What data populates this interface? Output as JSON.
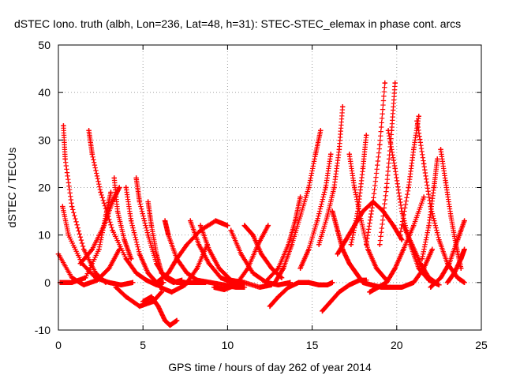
{
  "chart_data": {
    "type": "scatter",
    "title": "dSTEC Iono. truth (albh, Lon=236, Lat=48, h=31): STEC-STEC_elemax in phase cont. arcs",
    "xlabel": "GPS time / hours of day 262 of year 2014",
    "ylabel": "dSTEC  / TECUs",
    "xlim": [
      0,
      25
    ],
    "ylim": [
      -10,
      50
    ],
    "x_ticks": [
      0,
      5,
      10,
      15,
      20,
      25
    ],
    "y_ticks": [
      -10,
      0,
      10,
      20,
      30,
      40,
      50
    ],
    "x_tick_labels": [
      "0",
      "5",
      "10",
      "15",
      "20",
      "25"
    ],
    "y_tick_labels": [
      "-10",
      "0",
      "10",
      "20",
      "30",
      "40",
      "50"
    ],
    "grid": true,
    "marker": "+",
    "color": "#ff0000",
    "series": [
      {
        "x": [
          0.0,
          0.8,
          1.5,
          2.3,
          3.0,
          3.6
        ],
        "y": [
          6,
          1,
          -0.5,
          0.5,
          3,
          7
        ]
      },
      {
        "x": [
          0.3,
          0.4,
          0.8,
          1.5,
          2.2,
          2.8
        ],
        "y": [
          33,
          26,
          16,
          7,
          2,
          0
        ]
      },
      {
        "x": [
          0.25,
          0.6,
          1.4,
          2.2,
          3.0,
          3.7,
          4.4
        ],
        "y": [
          16,
          10,
          4,
          1,
          0,
          -0.5,
          0
        ]
      },
      {
        "x": [
          0.1,
          0.8,
          1.6,
          2.4,
          2.8,
          3.1
        ],
        "y": [
          0,
          0,
          1,
          7,
          14,
          19
        ]
      },
      {
        "x": [
          1.8,
          2.0,
          2.5,
          3.2,
          4.0,
          4.6,
          5.2,
          5.8,
          6.2
        ],
        "y": [
          32,
          27,
          19,
          11,
          5,
          2,
          0.5,
          -0.5,
          0
        ]
      },
      {
        "x": [
          1.3,
          2.0,
          2.7,
          3.2,
          3.6
        ],
        "y": [
          4,
          7,
          12,
          17,
          20
        ]
      },
      {
        "x": [
          3.3,
          3.5,
          3.9,
          4.3
        ],
        "y": [
          22,
          15,
          9,
          5
        ]
      },
      {
        "x": [
          3.4,
          4.0,
          4.8,
          5.6,
          6.1
        ],
        "y": [
          -1,
          -3,
          -5,
          -4,
          -2
        ]
      },
      {
        "x": [
          4.0,
          4.3,
          4.8,
          5.3,
          5.8,
          6.1
        ],
        "y": [
          20,
          13,
          6,
          2,
          0,
          -1
        ]
      },
      {
        "x": [
          4.6,
          4.8,
          5.3,
          5.8,
          6.3,
          6.8,
          7.3
        ],
        "y": [
          22,
          17,
          10,
          4,
          1,
          0,
          0.5
        ]
      },
      {
        "x": [
          5.0,
          5.5,
          5.9,
          6.3,
          6.6,
          7.0
        ],
        "y": [
          -4,
          -3,
          -5,
          -8,
          -9,
          -8
        ]
      },
      {
        "x": [
          5.3,
          5.5,
          5.8,
          6.1,
          6.5,
          7.0,
          7.6,
          8.2,
          8.7
        ],
        "y": [
          17,
          12,
          6,
          2,
          1,
          0,
          0,
          0,
          0
        ]
      },
      {
        "x": [
          6.3,
          6.5,
          7.0,
          7.6,
          8.2,
          9.0,
          9.8,
          10.5,
          11.0
        ],
        "y": [
          13,
          10,
          5,
          2,
          0.5,
          0,
          -0.5,
          -1,
          -1
        ]
      },
      {
        "x": [
          6.0,
          6.7,
          7.5,
          8.2,
          8.8
        ],
        "y": [
          -1,
          -2,
          -0.5,
          3,
          8
        ]
      },
      {
        "x": [
          5.8,
          6.5,
          7.0,
          7.6,
          8.4,
          9.3,
          10.0
        ],
        "y": [
          0,
          2,
          5,
          8,
          11,
          13,
          12
        ]
      },
      {
        "x": [
          7.8,
          8.3,
          8.9,
          9.6,
          10.3,
          11.0
        ],
        "y": [
          13,
          8,
          4,
          1,
          0,
          0
        ]
      },
      {
        "x": [
          8.4,
          8.9,
          9.5,
          10.2,
          11.0,
          11.9,
          12.6
        ],
        "y": [
          12,
          7,
          3,
          0.5,
          0,
          -1,
          -0.5
        ]
      },
      {
        "x": [
          9.2,
          9.8,
          10.5,
          11.2,
          11.8,
          12.4
        ],
        "y": [
          -1,
          -1.5,
          -0.5,
          3,
          8,
          12
        ]
      },
      {
        "x": [
          10.2,
          10.8,
          11.5,
          12.3,
          13.0,
          13.7
        ],
        "y": [
          11,
          6,
          2,
          0,
          -0.5,
          0
        ]
      },
      {
        "x": [
          11.0,
          11.5,
          12.0,
          12.6,
          13.2
        ],
        "y": [
          12,
          10,
          6,
          3,
          1
        ]
      },
      {
        "x": [
          12.5,
          13.0,
          13.6,
          14.2,
          14.8,
          15.4,
          15.9,
          16.2
        ],
        "y": [
          -5,
          -3,
          -1,
          0,
          0,
          -0.5,
          -0.5,
          0
        ]
      },
      {
        "x": [
          12.8,
          13.3,
          13.8,
          14.3,
          14.8,
          15.2,
          15.5
        ],
        "y": [
          0,
          3,
          8,
          14,
          20,
          27,
          32
        ]
      },
      {
        "x": [
          12.2,
          13.0,
          13.6,
          14.0,
          14.3
        ],
        "y": [
          0,
          3,
          8,
          13,
          18
        ]
      },
      {
        "x": [
          15.6,
          16.1,
          16.6,
          17.2,
          17.8,
          18.2
        ],
        "y": [
          -6,
          -4,
          -2,
          -0.5,
          0.5,
          0.5
        ]
      },
      {
        "x": [
          14.3,
          14.8,
          15.3,
          15.8,
          16.1
        ],
        "y": [
          3,
          7,
          13,
          20,
          27
        ]
      },
      {
        "x": [
          16.2,
          16.5,
          16.8,
          17.2,
          17.6,
          18.0,
          18.5,
          19.1,
          19.6
        ],
        "y": [
          15,
          11,
          7,
          4,
          2,
          0,
          -0.5,
          -1,
          -1
        ]
      },
      {
        "x": [
          15.4,
          15.9,
          16.3,
          16.6,
          16.8
        ],
        "y": [
          8,
          14,
          20,
          28,
          37
        ]
      },
      {
        "x": [
          16.5,
          17.0,
          17.5,
          18.0,
          18.6,
          19.2,
          19.8,
          20.3
        ],
        "y": [
          6,
          9,
          12,
          15,
          17,
          15,
          12,
          9
        ]
      },
      {
        "x": [
          17.2,
          17.5,
          17.9,
          18.3,
          18.8,
          19.4
        ],
        "y": [
          27,
          20,
          13,
          7,
          3,
          0.5
        ]
      },
      {
        "x": [
          17.3,
          17.7,
          18.0,
          18.2
        ],
        "y": [
          8,
          15,
          24,
          31
        ]
      },
      {
        "x": [
          18.2,
          18.6,
          19.0,
          19.3
        ],
        "y": [
          8,
          17,
          29,
          42
        ]
      },
      {
        "x": [
          18.4,
          18.9,
          19.4,
          19.9,
          20.4,
          21.0,
          21.6
        ],
        "y": [
          -2,
          -1,
          0,
          3,
          7,
          12,
          18
        ]
      },
      {
        "x": [
          19.5,
          19.9,
          20.3,
          20.8,
          21.3,
          21.9,
          22.5
        ],
        "y": [
          32,
          24,
          15,
          8,
          3,
          0.5,
          -0.5
        ]
      },
      {
        "x": [
          19.0,
          19.4,
          19.7,
          19.9
        ],
        "y": [
          8,
          20,
          32,
          42
        ]
      },
      {
        "x": [
          19.6,
          20.3,
          21.0,
          21.6,
          22.1
        ],
        "y": [
          -1,
          -1,
          0,
          3,
          7
        ]
      },
      {
        "x": [
          20.2,
          20.7,
          21.0,
          21.3
        ],
        "y": [
          10,
          20,
          28,
          35
        ]
      },
      {
        "x": [
          21.2,
          21.6,
          22.0,
          22.5,
          23.0,
          23.6,
          24.0
        ],
        "y": [
          34,
          25,
          16,
          9,
          4,
          1,
          0
        ]
      },
      {
        "x": [
          20.4,
          20.9,
          21.4,
          21.9,
          22.3
        ],
        "y": [
          12,
          8,
          4,
          1,
          0
        ]
      },
      {
        "x": [
          21.5,
          21.9,
          22.2,
          22.4
        ],
        "y": [
          5,
          12,
          20,
          26
        ]
      },
      {
        "x": [
          22.6,
          22.9,
          23.2,
          23.5,
          23.8
        ],
        "y": [
          28,
          21,
          14,
          8,
          3
        ]
      },
      {
        "x": [
          22.0,
          22.6,
          23.1,
          23.6,
          24.0
        ],
        "y": [
          -1,
          1,
          4,
          9,
          13
        ]
      },
      {
        "x": [
          23.0,
          23.4,
          23.8,
          24.0
        ],
        "y": [
          0,
          2,
          5,
          7
        ]
      }
    ]
  }
}
